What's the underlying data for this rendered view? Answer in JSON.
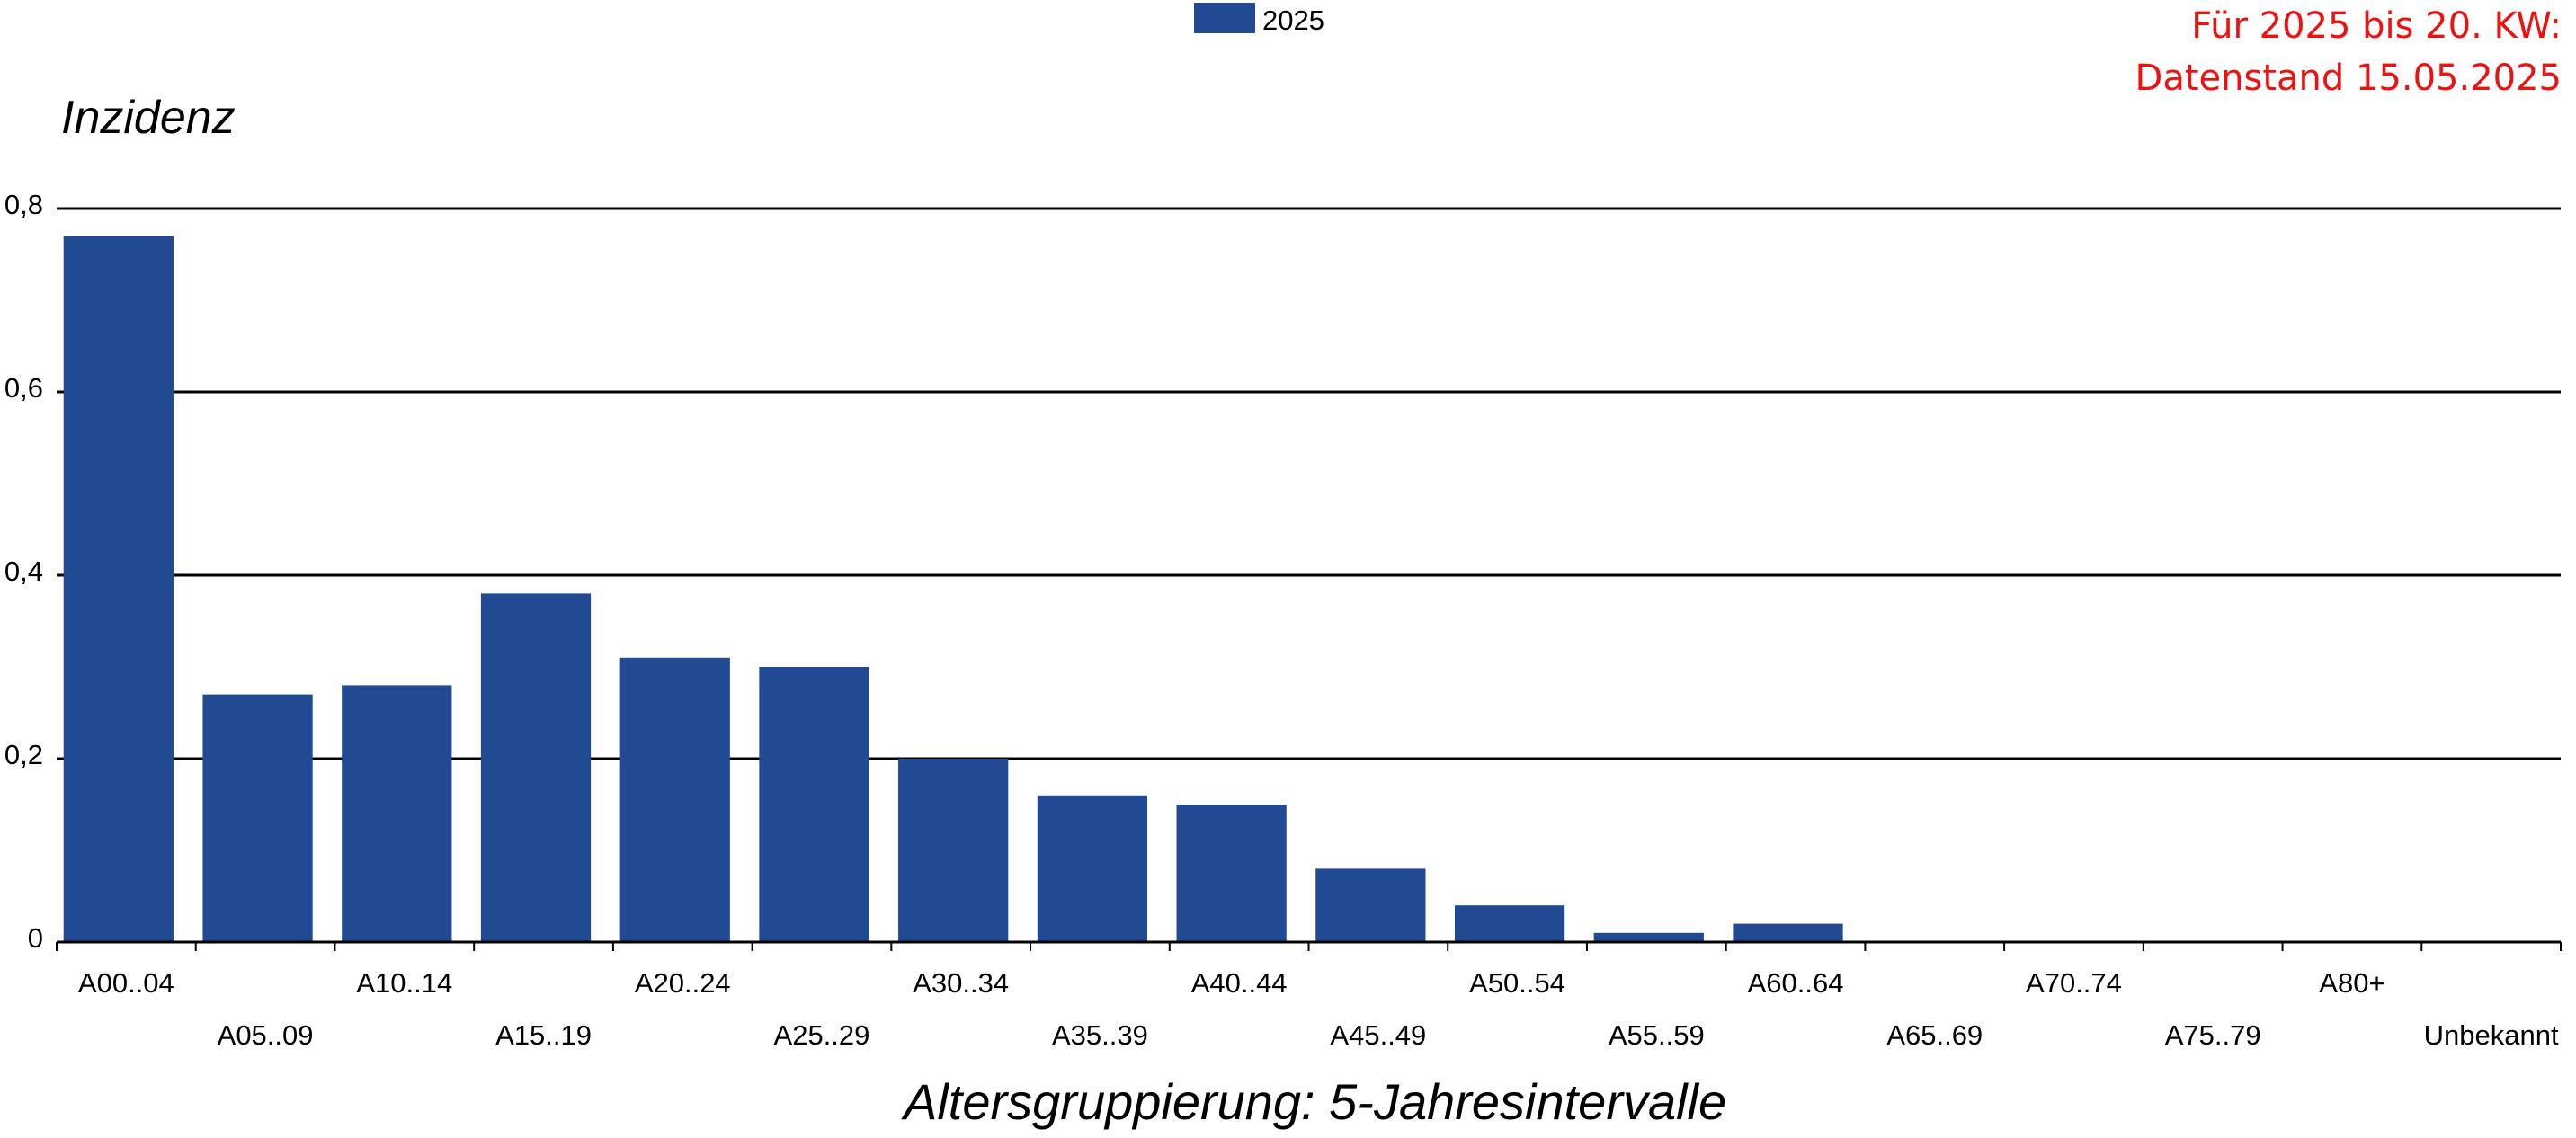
{
  "note": {
    "line1": "Für 2025 bis 20. KW:",
    "line2": "Datenstand 15.05.2025"
  },
  "colors": {
    "bar": "#214a92",
    "grid": "#000000",
    "note": "#ee1111"
  },
  "chart_data": {
    "type": "bar",
    "title": "",
    "ylabel": "Inzidenz",
    "xlabel": "Altersgruppierung: 5-Jahresintervalle",
    "legend": {
      "position": "top-center",
      "entries": [
        "2025"
      ]
    },
    "grid": true,
    "ylim": [
      0,
      0.8
    ],
    "yticks": [
      0,
      0.2,
      0.4,
      0.6,
      0.8
    ],
    "ytick_labels": [
      "0",
      "0,2",
      "0,4",
      "0,6",
      "0,8"
    ],
    "categories": [
      "A00..04",
      "A05..09",
      "A10..14",
      "A15..19",
      "A20..24",
      "A25..29",
      "A30..34",
      "A35..39",
      "A40..44",
      "A45..49",
      "A50..54",
      "A55..59",
      "A60..64",
      "A65..69",
      "A70..74",
      "A75..79",
      "A80+",
      "Unbekannt"
    ],
    "series": [
      {
        "name": "2025",
        "values": [
          0.77,
          0.27,
          0.28,
          0.38,
          0.31,
          0.3,
          0.2,
          0.16,
          0.15,
          0.08,
          0.04,
          0.01,
          0.02,
          0,
          0,
          0,
          0,
          0
        ]
      }
    ]
  }
}
